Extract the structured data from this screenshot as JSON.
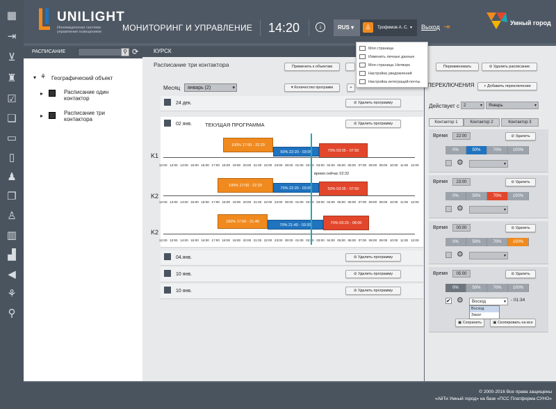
{
  "header": {
    "brand": "UNILIGHT",
    "brand_sub": "Инновационная система управления освещением",
    "title": "МОНИТОРИНГ И УПРАВЛЕНИЕ",
    "clock": "14:20",
    "lang": "RUS",
    "user": "Трофимов А. С.",
    "logout": "Выход",
    "partner": "Умный город"
  },
  "user_menu": [
    "Моя страница",
    "Изменить личные данные",
    "Моя страница. Нетворк",
    "Настройка уведомлений",
    "Настройка интеграций почты"
  ],
  "sidebar": {
    "title": "РАСПИСАНИЕ",
    "tree": [
      {
        "label": "Географический объект"
      },
      {
        "label": "Расписание один контактор"
      },
      {
        "label": "Расписание три контактора"
      }
    ]
  },
  "main": {
    "title": "КУРСК",
    "schedule_title": "Расписание три контактора",
    "month_label": "Месяц",
    "month_value": "январь (2)",
    "apply_button": "Применить к объектам",
    "count_button": "Количество программ",
    "rename_button": "Переименовать",
    "delete_schedule": "Удалить расписание",
    "delete_program": "Удалить программу",
    "current_program": "ТЕКУЩАЯ ПРОГРАММА",
    "now_label": "время сейчас 02:32",
    "rows": [
      {
        "date": "24 дек."
      },
      {
        "date": "02 янв."
      },
      {
        "date": "04.янв."
      },
      {
        "date": "10 янв."
      },
      {
        "date": "10 янв."
      }
    ],
    "contactors": [
      {
        "label": "K1",
        "bars": [
          {
            "text": "100% 17:50 - 22:20",
            "color": "orange"
          },
          {
            "text": "50% 22:20 - 03:05",
            "color": "blue"
          },
          {
            "text": "70% 03:05 - 07:50",
            "color": "red"
          }
        ]
      },
      {
        "label": "K2",
        "bars": [
          {
            "text": "100% 17:00 - 22:20",
            "color": "orange"
          },
          {
            "text": "70% 22:20 - 03:05",
            "color": "blue"
          },
          {
            "text": "50% 03:05 - 07:50",
            "color": "red"
          }
        ]
      },
      {
        "label": "K2",
        "bars": [
          {
            "text": "100% 17:00 - 21:40",
            "color": "orange"
          },
          {
            "text": "70% 21:40 - 03:20",
            "color": "blue"
          },
          {
            "text": "70% 03:20 - 08:00",
            "color": "red"
          }
        ]
      }
    ],
    "ticks": [
      "12:00",
      "13:00",
      "14:00",
      "15:00",
      "16:00",
      "17:00",
      "18:00",
      "19:00",
      "20:00",
      "21:00",
      "22:00",
      "23:00",
      "00:00",
      "01:00",
      "02:00",
      "03:00",
      "04:00",
      "05:00",
      "06:00",
      "07:00",
      "08:00",
      "09:00",
      "10:00",
      "11:00",
      "12:00"
    ]
  },
  "right": {
    "title": "ПЕРЕКЛЮЧЕНИЯ",
    "add_switch": "Добавить переключение",
    "acts_from": "Действует с",
    "day": "2",
    "month": "Январь",
    "tabs": [
      "Контактор 1",
      "Контактор 2",
      "Контактор 3"
    ],
    "time_label": "Время",
    "delete": "Удалить",
    "segments": [
      "0%",
      "50%",
      "70%",
      "100%"
    ],
    "blocks": [
      {
        "time": "22:00",
        "active": 1,
        "kind": "b"
      },
      {
        "time": "23:00",
        "active": 2,
        "kind": "r"
      },
      {
        "time": "00:00",
        "active": 3,
        "kind": "o"
      },
      {
        "time": "05:00",
        "active": 0,
        "kind": "n"
      }
    ],
    "sunrise": "Восход",
    "sunrise_options": [
      "Восход",
      "Закат"
    ],
    "offset": "- 01:34",
    "save": "Сохранить",
    "copy_all": "Скопировать на все"
  },
  "footer": {
    "copyright": "© 2000-2016 Все права защищены",
    "platform": "«АйТи Умный город» на базе «ПСС Платформа СУНО»"
  },
  "colors": {
    "orange": "#f08a1e",
    "blue": "#1f73bf",
    "red": "#e2472b",
    "teal": "#1aa9b8"
  }
}
